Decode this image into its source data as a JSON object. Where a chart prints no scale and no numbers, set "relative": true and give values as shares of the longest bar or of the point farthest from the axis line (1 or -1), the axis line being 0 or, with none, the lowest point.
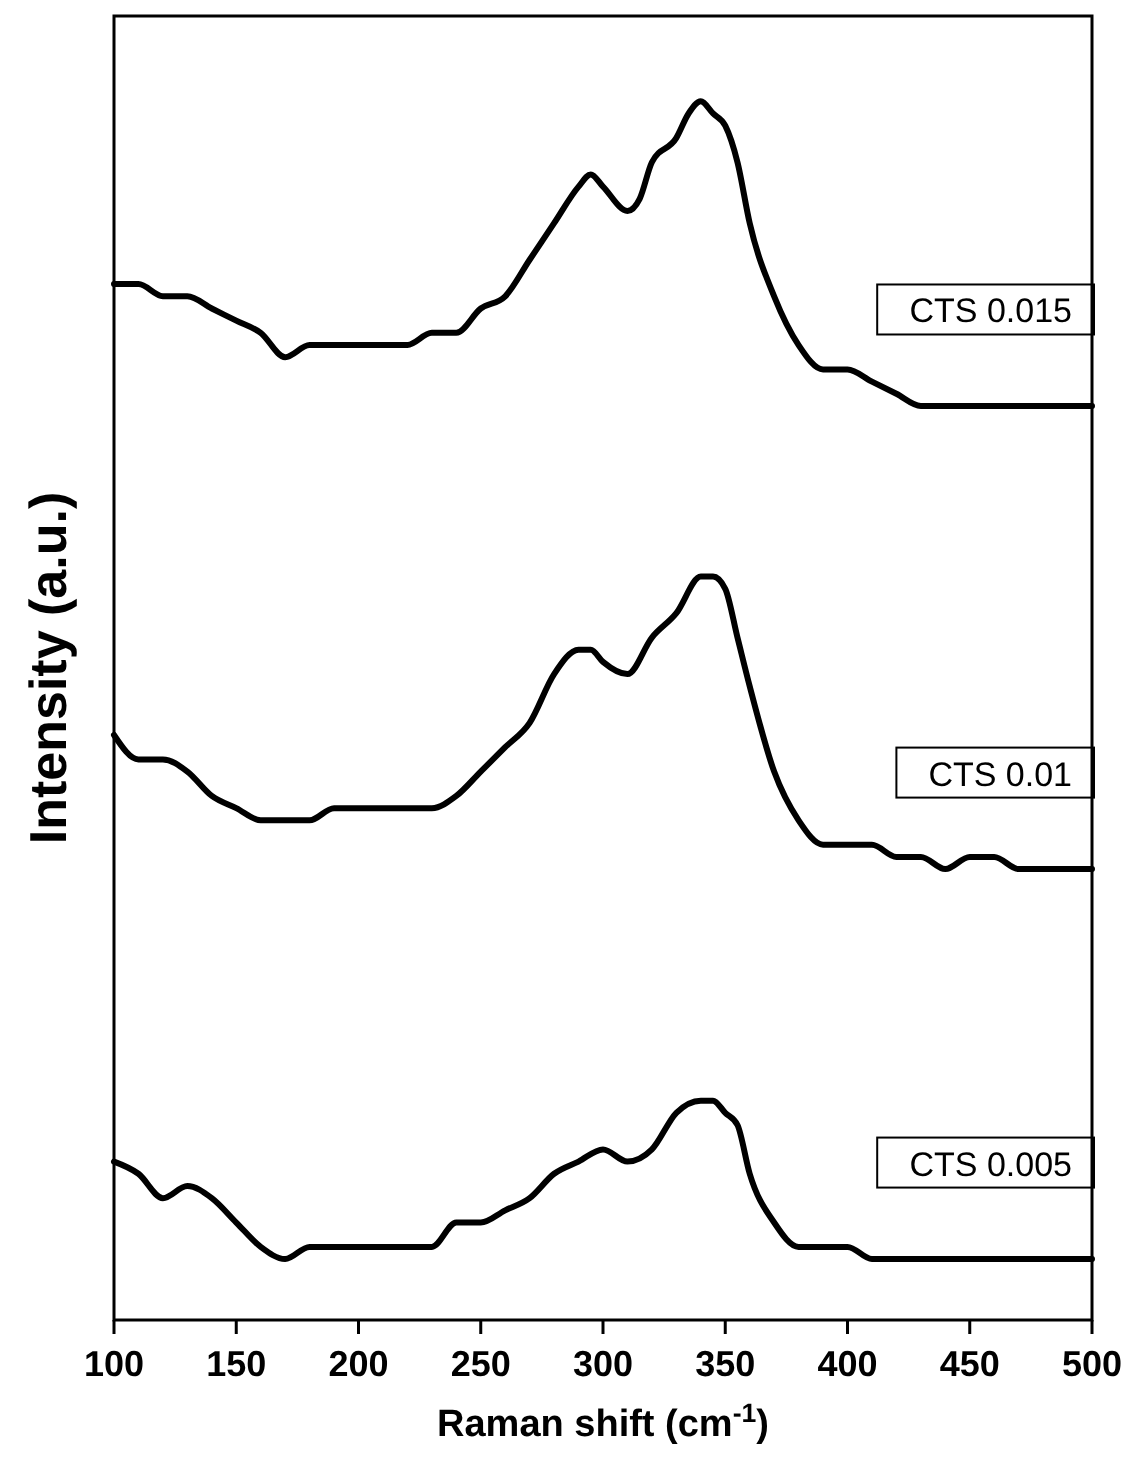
{
  "chart_data": {
    "type": "line",
    "relative": true,
    "xlabel": "Raman shift (cm$^{-1}$)",
    "ylabel": "Intensity (a.u.)",
    "xlim": [
      100,
      500
    ],
    "xticks": [
      100,
      150,
      200,
      250,
      300,
      350,
      400,
      450,
      500
    ],
    "tick_labels": "x",
    "series": [
      {
        "name": "CTS 0.015",
        "color": "#000000",
        "x": [
          100,
          110,
          120,
          130,
          140,
          150,
          160,
          170,
          180,
          190,
          200,
          210,
          220,
          230,
          240,
          250,
          260,
          270,
          280,
          290,
          295,
          300,
          310,
          315,
          320,
          330,
          335,
          340,
          345,
          350,
          355,
          360,
          370,
          380,
          390,
          400,
          410,
          420,
          430,
          440,
          450,
          460,
          470,
          480,
          490,
          500
        ],
        "values": [
          0.85,
          0.85,
          0.84,
          0.84,
          0.83,
          0.82,
          0.81,
          0.79,
          0.8,
          0.8,
          0.8,
          0.8,
          0.8,
          0.81,
          0.81,
          0.83,
          0.84,
          0.87,
          0.9,
          0.93,
          0.94,
          0.93,
          0.91,
          0.92,
          0.95,
          0.97,
          0.99,
          1,
          0.99,
          0.98,
          0.95,
          0.9,
          0.84,
          0.8,
          0.78,
          0.78,
          0.77,
          0.76,
          0.75,
          0.75,
          0.75,
          0.75,
          0.75,
          0.75,
          0.75,
          0.75
        ]
      },
      {
        "name": "CTS 0.01",
        "color": "#000000",
        "x": [
          100,
          110,
          120,
          130,
          140,
          150,
          160,
          170,
          180,
          190,
          200,
          210,
          220,
          230,
          240,
          250,
          260,
          270,
          280,
          290,
          295,
          300,
          310,
          320,
          330,
          340,
          345,
          350,
          355,
          360,
          370,
          380,
          390,
          400,
          410,
          420,
          430,
          440,
          450,
          460,
          470,
          480,
          490,
          500
        ],
        "values": [
          0.48,
          0.46,
          0.46,
          0.45,
          0.43,
          0.42,
          0.41,
          0.41,
          0.41,
          0.42,
          0.42,
          0.42,
          0.42,
          0.42,
          0.43,
          0.45,
          0.47,
          0.49,
          0.53,
          0.55,
          0.55,
          0.54,
          0.53,
          0.56,
          0.58,
          0.61,
          0.61,
          0.6,
          0.56,
          0.52,
          0.45,
          0.41,
          0.39,
          0.39,
          0.39,
          0.38,
          0.38,
          0.37,
          0.38,
          0.38,
          0.37,
          0.37,
          0.37,
          0.37
        ]
      },
      {
        "name": "CTS 0.005",
        "color": "#000000",
        "x": [
          100,
          110,
          120,
          130,
          140,
          150,
          160,
          170,
          180,
          190,
          200,
          210,
          220,
          230,
          240,
          250,
          260,
          270,
          280,
          290,
          300,
          310,
          320,
          330,
          340,
          345,
          350,
          355,
          360,
          370,
          380,
          390,
          400,
          410,
          420,
          430,
          440,
          450,
          460,
          470,
          480,
          490,
          500
        ],
        "values": [
          0.13,
          0.12,
          0.1,
          0.11,
          0.1,
          0.08,
          0.06,
          0.05,
          0.06,
          0.06,
          0.06,
          0.06,
          0.06,
          0.06,
          0.08,
          0.08,
          0.09,
          0.1,
          0.12,
          0.13,
          0.14,
          0.13,
          0.14,
          0.17,
          0.18,
          0.18,
          0.17,
          0.16,
          0.12,
          0.08,
          0.06,
          0.06,
          0.06,
          0.05,
          0.05,
          0.05,
          0.05,
          0.05,
          0.05,
          0.05,
          0.05,
          0.05,
          0.05
        ]
      }
    ]
  }
}
